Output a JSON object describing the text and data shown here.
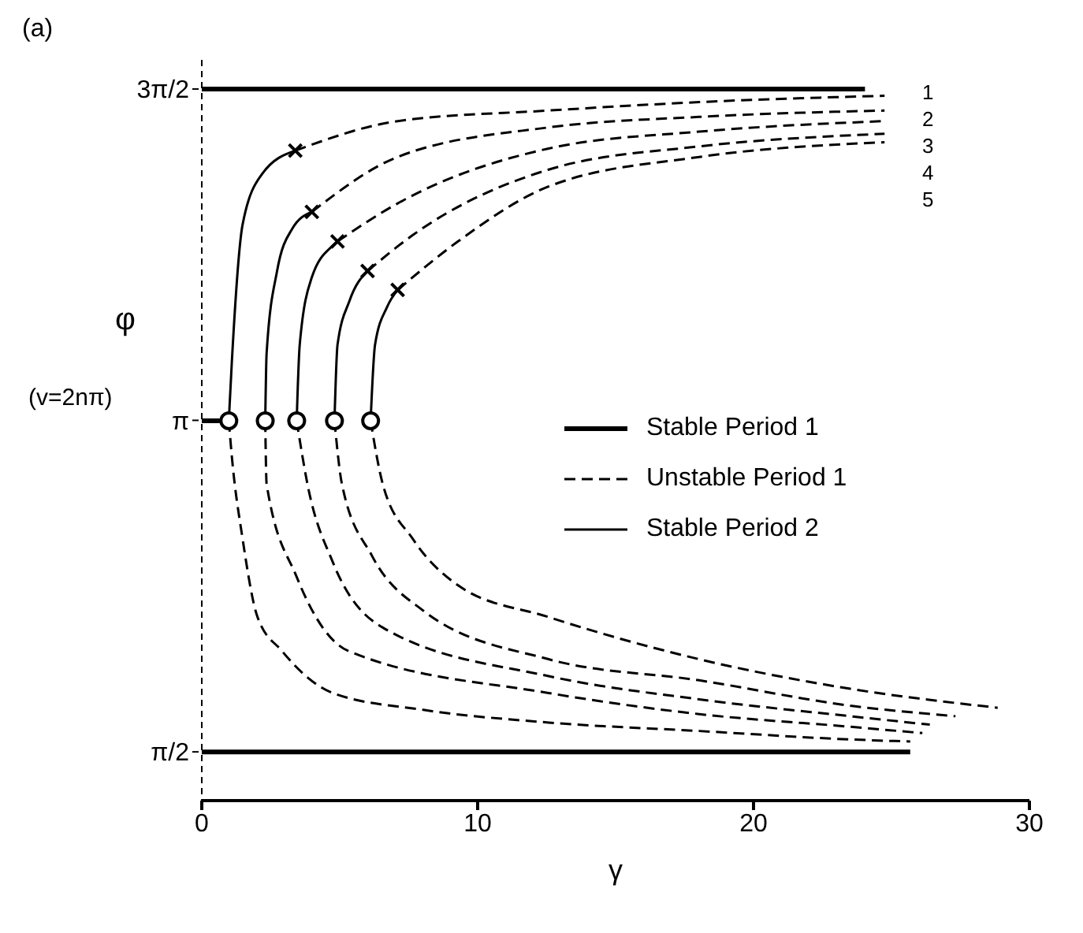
{
  "chart_data": {
    "type": "line",
    "title": "(a)",
    "xlabel": "γ",
    "ylabel": "φ\n(v=2nπ)",
    "xlim": [
      0,
      30
    ],
    "ylim": [
      1.34,
      4.85
    ],
    "xticks": [
      0,
      10,
      20,
      30
    ],
    "yticks": [
      {
        "value": 1.571,
        "label": "π/2"
      },
      {
        "value": 3.142,
        "label": "π"
      },
      {
        "value": 4.712,
        "label": "3π/2"
      }
    ],
    "grid": false,
    "legend": "right",
    "annotations": [
      "1",
      "2",
      "3",
      "4",
      "5"
    ],
    "series": [
      {
        "name": "Stable Period 1",
        "color": "#000000",
        "line_style": "solid",
        "marker": "none",
        "x": [
          0,
          24.04
        ],
        "values": [
          4.712,
          4.712
        ]
      },
      {
        "color": "#000000",
        "line_style": "solid",
        "marker": "none",
        "x": [
          0,
          0.98
        ],
        "values": [
          3.14,
          3.14
        ]
      },
      {
        "color": "#000000",
        "line_style": "solid",
        "marker": "none",
        "x": [
          0,
          25.68
        ],
        "values": [
          1.571,
          1.571
        ]
      },
      {
        "name": "Unstable Period 1",
        "color": "#000000",
        "line_style": "dashed",
        "marker": "none",
        "x": [
          3.39,
          7.1,
          12.57,
          18.03,
          24.75
        ],
        "values": [
          4.42,
          4.56,
          4.61,
          4.65,
          4.68
        ]
      },
      {
        "color": "#000000",
        "line_style": "dashed",
        "marker": "none",
        "x": [
          3.99,
          7.1,
          12.57,
          18.03,
          24.75
        ],
        "values": [
          4.13,
          4.39,
          4.53,
          4.58,
          4.61
        ]
      },
      {
        "color": "#000000",
        "line_style": "dashed",
        "marker": "none",
        "x": [
          4.92,
          7.1,
          12.57,
          18.03,
          24.75
        ],
        "values": [
          3.99,
          4.17,
          4.43,
          4.51,
          4.56
        ]
      },
      {
        "color": "#000000",
        "line_style": "dashed",
        "marker": "none",
        "x": [
          6.01,
          7.65,
          12.57,
          18.03,
          24.75
        ],
        "values": [
          3.85,
          4.02,
          4.33,
          4.44,
          4.5
        ]
      },
      {
        "color": "#000000",
        "line_style": "dashed",
        "marker": "none",
        "x": [
          7.1,
          9.29,
          12.57,
          18.03,
          24.75
        ],
        "values": [
          3.76,
          3.99,
          4.25,
          4.39,
          4.46
        ]
      },
      {
        "color": "#000000",
        "line_style": "dashed",
        "marker": "none",
        "x": [
          0.98,
          1.09,
          1.48,
          2.02,
          2.9,
          4.75,
          8.03,
          12.57,
          18.03,
          23.5,
          25.68
        ],
        "values": [
          3.14,
          2.97,
          2.58,
          2.21,
          2.05,
          1.85,
          1.77,
          1.71,
          1.67,
          1.63,
          1.62
        ]
      },
      {
        "color": "#000000",
        "line_style": "dashed",
        "marker": "none",
        "x": [
          2.3,
          2.35,
          3.44,
          5.3,
          12.57,
          18.03,
          23.5,
          26.12
        ],
        "values": [
          3.14,
          2.84,
          2.4,
          2.05,
          1.85,
          1.75,
          1.69,
          1.66
        ]
      },
      {
        "color": "#000000",
        "line_style": "dashed",
        "marker": "none",
        "x": [
          3.44,
          3.83,
          4.75,
          6.56,
          12.57,
          18.03,
          23.5,
          26.39
        ],
        "values": [
          3.14,
          2.84,
          2.47,
          2.16,
          1.93,
          1.82,
          1.74,
          1.7
        ]
      },
      {
        "color": "#000000",
        "line_style": "dashed",
        "marker": "none",
        "x": [
          4.81,
          5.08,
          6.17,
          8.03,
          12.57,
          18.03,
          23.5,
          27.32
        ],
        "values": [
          3.14,
          2.84,
          2.5,
          2.24,
          2.01,
          1.91,
          1.79,
          1.74
        ]
      },
      {
        "color": "#000000",
        "line_style": "dashed",
        "marker": "none",
        "x": [
          6.12,
          6.56,
          7.65,
          9.29,
          12.57,
          18.03,
          23.5,
          28.85
        ],
        "values": [
          3.14,
          2.84,
          2.58,
          2.36,
          2.21,
          2.01,
          1.87,
          1.78
        ]
      },
      {
        "name": "Stable Period 2",
        "color": "#000000",
        "line_style": "solid",
        "marker": "none",
        "x": [
          0.98,
          1.09,
          1.48,
          2.19,
          3.39
        ],
        "values": [
          3.14,
          3.42,
          4.07,
          4.31,
          4.42
        ]
      },
      {
        "color": "#000000",
        "line_style": "solid",
        "marker": "none",
        "x": [
          2.3,
          2.35,
          2.73,
          3.28,
          3.99
        ],
        "values": [
          3.14,
          3.46,
          3.85,
          4.05,
          4.13
        ]
      },
      {
        "color": "#000000",
        "line_style": "solid",
        "marker": "none",
        "x": [
          3.44,
          3.55,
          3.99,
          4.75,
          4.92
        ],
        "values": [
          3.14,
          3.5,
          3.82,
          3.97,
          3.99
        ]
      },
      {
        "color": "#000000",
        "line_style": "solid",
        "marker": "none",
        "x": [
          4.81,
          4.92,
          5.36,
          6.01
        ],
        "values": [
          3.14,
          3.5,
          3.71,
          3.85
        ]
      },
      {
        "color": "#000000",
        "line_style": "solid",
        "marker": "none",
        "x": [
          6.12,
          6.28,
          6.72,
          7.1
        ],
        "values": [
          3.14,
          3.5,
          3.68,
          3.76
        ]
      },
      {
        "type": "scatter",
        "color": "#000000",
        "marker": "circle",
        "x": [
          0.98,
          2.3,
          3.44,
          4.81,
          6.12
        ],
        "values": [
          3.14,
          3.14,
          3.14,
          3.14,
          3.14
        ]
      },
      {
        "type": "scatter",
        "color": "#000000",
        "marker": "cross",
        "x": [
          3.39,
          3.99,
          4.92,
          6.01,
          7.1
        ],
        "values": [
          4.42,
          4.13,
          3.99,
          3.85,
          3.76
        ]
      }
    ]
  }
}
